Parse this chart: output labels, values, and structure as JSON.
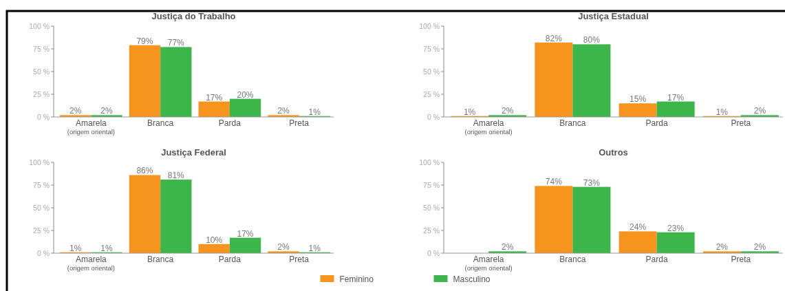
{
  "chart_data": [
    {
      "type": "bar",
      "title": "Justiça do Trabalho",
      "categories": [
        "Amarela\n(origem oriental)",
        "Branca",
        "Parda",
        "Preta"
      ],
      "ylim": [
        0,
        100
      ],
      "yticks": [
        {
          "value": 0,
          "label": "0 %"
        },
        {
          "value": 25,
          "label": "25 %"
        },
        {
          "value": 50,
          "label": "50 %"
        },
        {
          "value": 75,
          "label": "75 %"
        },
        {
          "value": 100,
          "label": "100 %"
        }
      ],
      "series": [
        {
          "color": "#f7941d",
          "values": [
            2,
            79,
            17,
            2
          ],
          "value_labels": [
            "2%",
            "79%",
            "17%",
            "2%"
          ]
        },
        {
          "color": "#3cb54a",
          "values": [
            2,
            77,
            20,
            1
          ],
          "value_labels": [
            "2%",
            "77%",
            "20%",
            "1%"
          ]
        }
      ]
    },
    {
      "type": "bar",
      "title": "Justiça Estadual",
      "categories": [
        "Amarela\n(origem oriental)",
        "Branca",
        "Parda",
        "Preta"
      ],
      "ylim": [
        0,
        100
      ],
      "yticks": [
        {
          "value": 0,
          "label": "0 %"
        },
        {
          "value": 25,
          "label": "25 %"
        },
        {
          "value": 50,
          "label": "50 %"
        },
        {
          "value": 75,
          "label": "75 %"
        },
        {
          "value": 100,
          "label": "100 %"
        }
      ],
      "series": [
        {
          "color": "#f7941d",
          "values": [
            1,
            82,
            15,
            1
          ],
          "value_labels": [
            "1%",
            "82%",
            "15%",
            "1%"
          ]
        },
        {
          "color": "#3cb54a",
          "values": [
            2,
            80,
            17,
            2
          ],
          "value_labels": [
            "2%",
            "80%",
            "17%",
            "2%"
          ]
        }
      ]
    },
    {
      "type": "bar",
      "title": "Justiça Federal",
      "categories": [
        "Amarela\n(origem oriental)",
        "Branca",
        "Parda",
        "Preta"
      ],
      "ylim": [
        0,
        100
      ],
      "yticks": [
        {
          "value": 0,
          "label": "0 %"
        },
        {
          "value": 25,
          "label": "25 %"
        },
        {
          "value": 50,
          "label": "50 %"
        },
        {
          "value": 75,
          "label": "75 %"
        },
        {
          "value": 100,
          "label": "100 %"
        }
      ],
      "legend": "bottom",
      "series": [
        {
          "name": "Feminino",
          "color": "#f7941d",
          "values": [
            1,
            86,
            10,
            2
          ],
          "value_labels": [
            "1%",
            "86%",
            "10%",
            "2%"
          ]
        },
        {
          "name": "Masculino",
          "color": "#3cb54a",
          "values": [
            1,
            81,
            17,
            1
          ],
          "value_labels": [
            "1%",
            "81%",
            "17%",
            "1%"
          ]
        }
      ]
    },
    {
      "type": "bar",
      "title": "Outros",
      "categories": [
        "Amarela\n(origem oriental)",
        "Branca",
        "Parda",
        "Preta"
      ],
      "ylim": [
        0,
        100
      ],
      "yticks": [
        {
          "value": 0,
          "label": "0 %"
        },
        {
          "value": 25,
          "label": "25 %"
        },
        {
          "value": 50,
          "label": "50 %"
        },
        {
          "value": 75,
          "label": "75 %"
        },
        {
          "value": 100,
          "label": "100 %"
        }
      ],
      "series": [
        {
          "color": "#f7941d",
          "values": [
            null,
            74,
            24,
            2
          ],
          "value_labels": [
            null,
            "74%",
            "24%",
            "2%"
          ]
        },
        {
          "color": "#3cb54a",
          "values": [
            2,
            73,
            23,
            2
          ],
          "value_labels": [
            "2%",
            "73%",
            "23%",
            "2%"
          ]
        }
      ]
    }
  ]
}
